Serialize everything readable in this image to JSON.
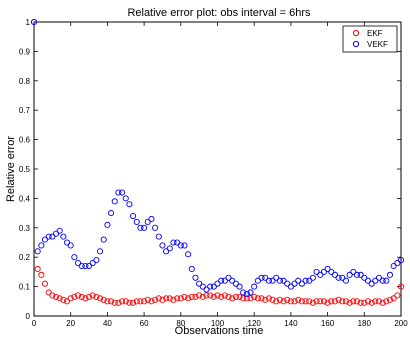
{
  "chart_data": {
    "type": "scatter",
    "title": "Relative error plot: obs interval = 6hrs",
    "xlabel": "Observations time",
    "ylabel": "Relative error",
    "xlim": [
      0,
      200
    ],
    "ylim": [
      0,
      1
    ],
    "xticks": [
      "0",
      "20",
      "40",
      "60",
      "80",
      "100",
      "120",
      "140",
      "160",
      "180",
      "200"
    ],
    "yticks": [
      "0",
      "0.1",
      "0.2",
      "0.3",
      "0.4",
      "0.5",
      "0.6",
      "0.7",
      "0.8",
      "0.9",
      "1"
    ],
    "grid": false,
    "legend_position": "top-right",
    "marker": "open-circle",
    "series": [
      {
        "name": "EKF",
        "color": "#ff0000",
        "x": [
          0,
          2,
          4,
          6,
          8,
          10,
          12,
          14,
          16,
          18,
          20,
          22,
          24,
          26,
          28,
          30,
          32,
          34,
          36,
          38,
          40,
          42,
          44,
          46,
          48,
          50,
          52,
          54,
          56,
          58,
          60,
          62,
          64,
          66,
          68,
          70,
          72,
          74,
          76,
          78,
          80,
          82,
          84,
          86,
          88,
          90,
          92,
          94,
          96,
          98,
          100,
          102,
          104,
          106,
          108,
          110,
          112,
          114,
          116,
          118,
          120,
          122,
          124,
          126,
          128,
          130,
          132,
          134,
          136,
          138,
          140,
          142,
          144,
          146,
          148,
          150,
          152,
          154,
          156,
          158,
          160,
          162,
          164,
          166,
          168,
          170,
          172,
          174,
          176,
          178,
          180,
          182,
          184,
          186,
          188,
          190,
          192,
          194,
          196,
          198,
          200
        ],
        "y": [
          1.0,
          0.16,
          0.14,
          0.11,
          0.08,
          0.07,
          0.065,
          0.06,
          0.055,
          0.05,
          0.06,
          0.065,
          0.07,
          0.065,
          0.06,
          0.065,
          0.07,
          0.065,
          0.06,
          0.055,
          0.05,
          0.05,
          0.045,
          0.045,
          0.05,
          0.05,
          0.045,
          0.045,
          0.05,
          0.05,
          0.05,
          0.055,
          0.05,
          0.055,
          0.06,
          0.055,
          0.06,
          0.06,
          0.055,
          0.06,
          0.06,
          0.065,
          0.06,
          0.065,
          0.065,
          0.07,
          0.065,
          0.07,
          0.07,
          0.065,
          0.07,
          0.065,
          0.07,
          0.065,
          0.06,
          0.065,
          0.065,
          0.06,
          0.06,
          0.06,
          0.065,
          0.06,
          0.06,
          0.055,
          0.06,
          0.055,
          0.05,
          0.055,
          0.05,
          0.055,
          0.05,
          0.05,
          0.055,
          0.05,
          0.05,
          0.05,
          0.045,
          0.05,
          0.05,
          0.05,
          0.045,
          0.05,
          0.05,
          0.055,
          0.05,
          0.05,
          0.045,
          0.05,
          0.05,
          0.045,
          0.045,
          0.05,
          0.045,
          0.05,
          0.05,
          0.045,
          0.05,
          0.055,
          0.06,
          0.07,
          0.1
        ]
      },
      {
        "name": "VEKF",
        "color": "#0000ff",
        "x": [
          0,
          2,
          4,
          6,
          8,
          10,
          12,
          14,
          16,
          18,
          20,
          22,
          24,
          26,
          28,
          30,
          32,
          34,
          36,
          38,
          40,
          42,
          44,
          46,
          48,
          50,
          52,
          54,
          56,
          58,
          60,
          62,
          64,
          66,
          68,
          70,
          72,
          74,
          76,
          78,
          80,
          82,
          84,
          86,
          88,
          90,
          92,
          94,
          96,
          98,
          100,
          102,
          104,
          106,
          108,
          110,
          112,
          114,
          116,
          118,
          120,
          122,
          124,
          126,
          128,
          130,
          132,
          134,
          136,
          138,
          140,
          142,
          144,
          146,
          148,
          150,
          152,
          154,
          156,
          158,
          160,
          162,
          164,
          166,
          168,
          170,
          172,
          174,
          176,
          178,
          180,
          182,
          184,
          186,
          188,
          190,
          192,
          194,
          196,
          198,
          200
        ],
        "y": [
          1.0,
          0.22,
          0.24,
          0.26,
          0.27,
          0.27,
          0.28,
          0.29,
          0.27,
          0.25,
          0.24,
          0.2,
          0.18,
          0.17,
          0.17,
          0.17,
          0.18,
          0.19,
          0.22,
          0.26,
          0.31,
          0.35,
          0.39,
          0.42,
          0.42,
          0.4,
          0.38,
          0.34,
          0.32,
          0.3,
          0.3,
          0.32,
          0.33,
          0.3,
          0.27,
          0.24,
          0.22,
          0.23,
          0.25,
          0.25,
          0.24,
          0.24,
          0.21,
          0.16,
          0.13,
          0.11,
          0.1,
          0.09,
          0.1,
          0.1,
          0.11,
          0.12,
          0.12,
          0.13,
          0.12,
          0.11,
          0.1,
          0.08,
          0.075,
          0.08,
          0.1,
          0.12,
          0.13,
          0.13,
          0.12,
          0.12,
          0.13,
          0.12,
          0.12,
          0.11,
          0.1,
          0.11,
          0.12,
          0.11,
          0.12,
          0.12,
          0.13,
          0.15,
          0.14,
          0.15,
          0.16,
          0.15,
          0.14,
          0.13,
          0.13,
          0.12,
          0.14,
          0.15,
          0.14,
          0.14,
          0.13,
          0.12,
          0.11,
          0.12,
          0.13,
          0.12,
          0.12,
          0.14,
          0.17,
          0.18,
          0.19
        ]
      }
    ]
  }
}
